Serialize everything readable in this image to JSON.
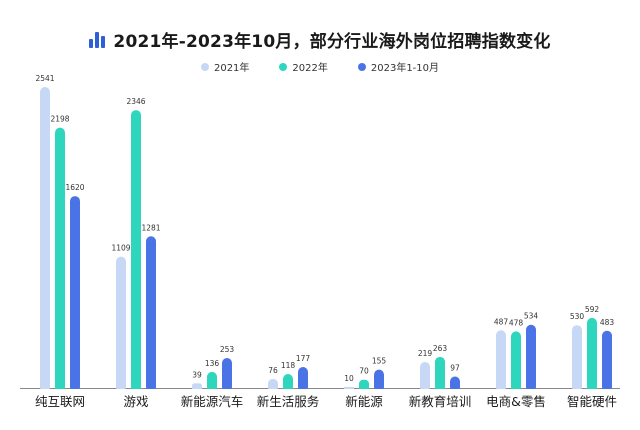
{
  "header": {
    "title": "2021年-2023年10月，部分行业海外岗位招聘指数变化",
    "icon": "bar-chart-icon"
  },
  "colors": {
    "s2021": "#c6d8f5",
    "s2022": "#2fd6be",
    "s2023": "#4a73e6",
    "axis": "#888888",
    "icon": "#2f5fd8"
  },
  "chart_data": {
    "type": "bar",
    "title": "2021年-2023年10月，部分行业海外岗位招聘指数变化",
    "xlabel": "",
    "ylabel": "",
    "ylim": [
      0,
      2600
    ],
    "grid": false,
    "legend_position": "top-center",
    "categories": [
      "纯互联网",
      "游戏",
      "新能源汽车",
      "新生活服务",
      "新能源",
      "新教育培训",
      "电商&零售",
      "智能硬件"
    ],
    "series": [
      {
        "name": "2021年",
        "color": "#c6d8f5",
        "values": [
          2541,
          1109,
          39,
          76,
          10,
          219,
          487,
          530
        ]
      },
      {
        "name": "2022年",
        "color": "#2fd6be",
        "values": [
          2198,
          2346,
          136,
          118,
          70,
          263,
          478,
          592
        ]
      },
      {
        "name": "2023年1-10月",
        "color": "#4a73e6",
        "values": [
          1620,
          1281,
          253,
          177,
          155,
          97,
          534,
          483
        ]
      }
    ]
  }
}
